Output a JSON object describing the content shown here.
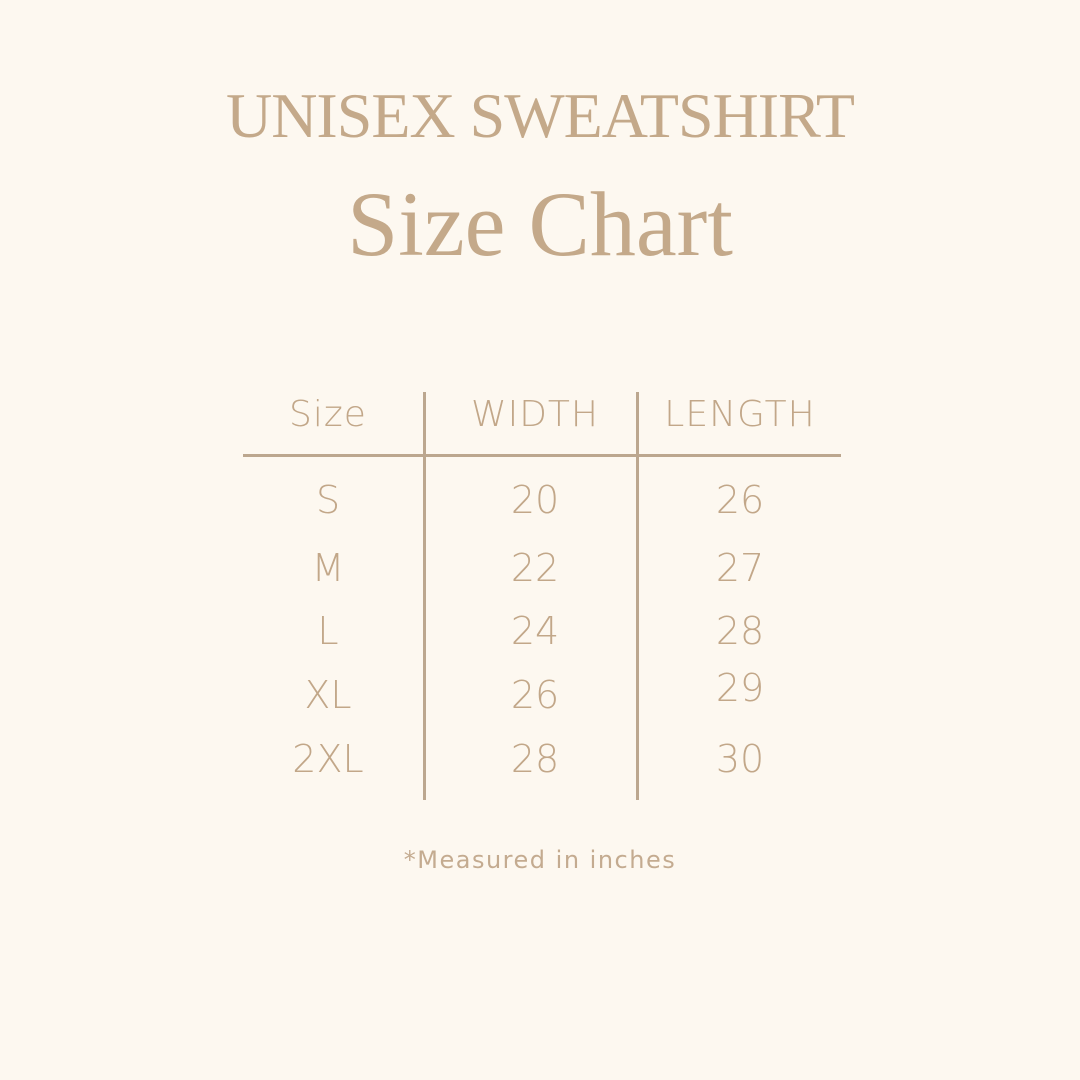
{
  "header": {
    "title": "UNISEX SWEATSHIRT",
    "subtitle": "Size Chart"
  },
  "colors": {
    "background": "#fdf8f0",
    "text": "#c4a98a",
    "rules": "#bca78f"
  },
  "table": {
    "columns": [
      "Size",
      "WIDTH",
      "LENGTH"
    ],
    "rows": [
      [
        "S",
        "20",
        "26"
      ],
      [
        "M",
        "22",
        "27"
      ],
      [
        "L",
        "24",
        "28"
      ],
      [
        "XL",
        "26",
        "29"
      ],
      [
        "2XL",
        "28",
        "30"
      ]
    ]
  },
  "footnote": "*Measured in inches"
}
